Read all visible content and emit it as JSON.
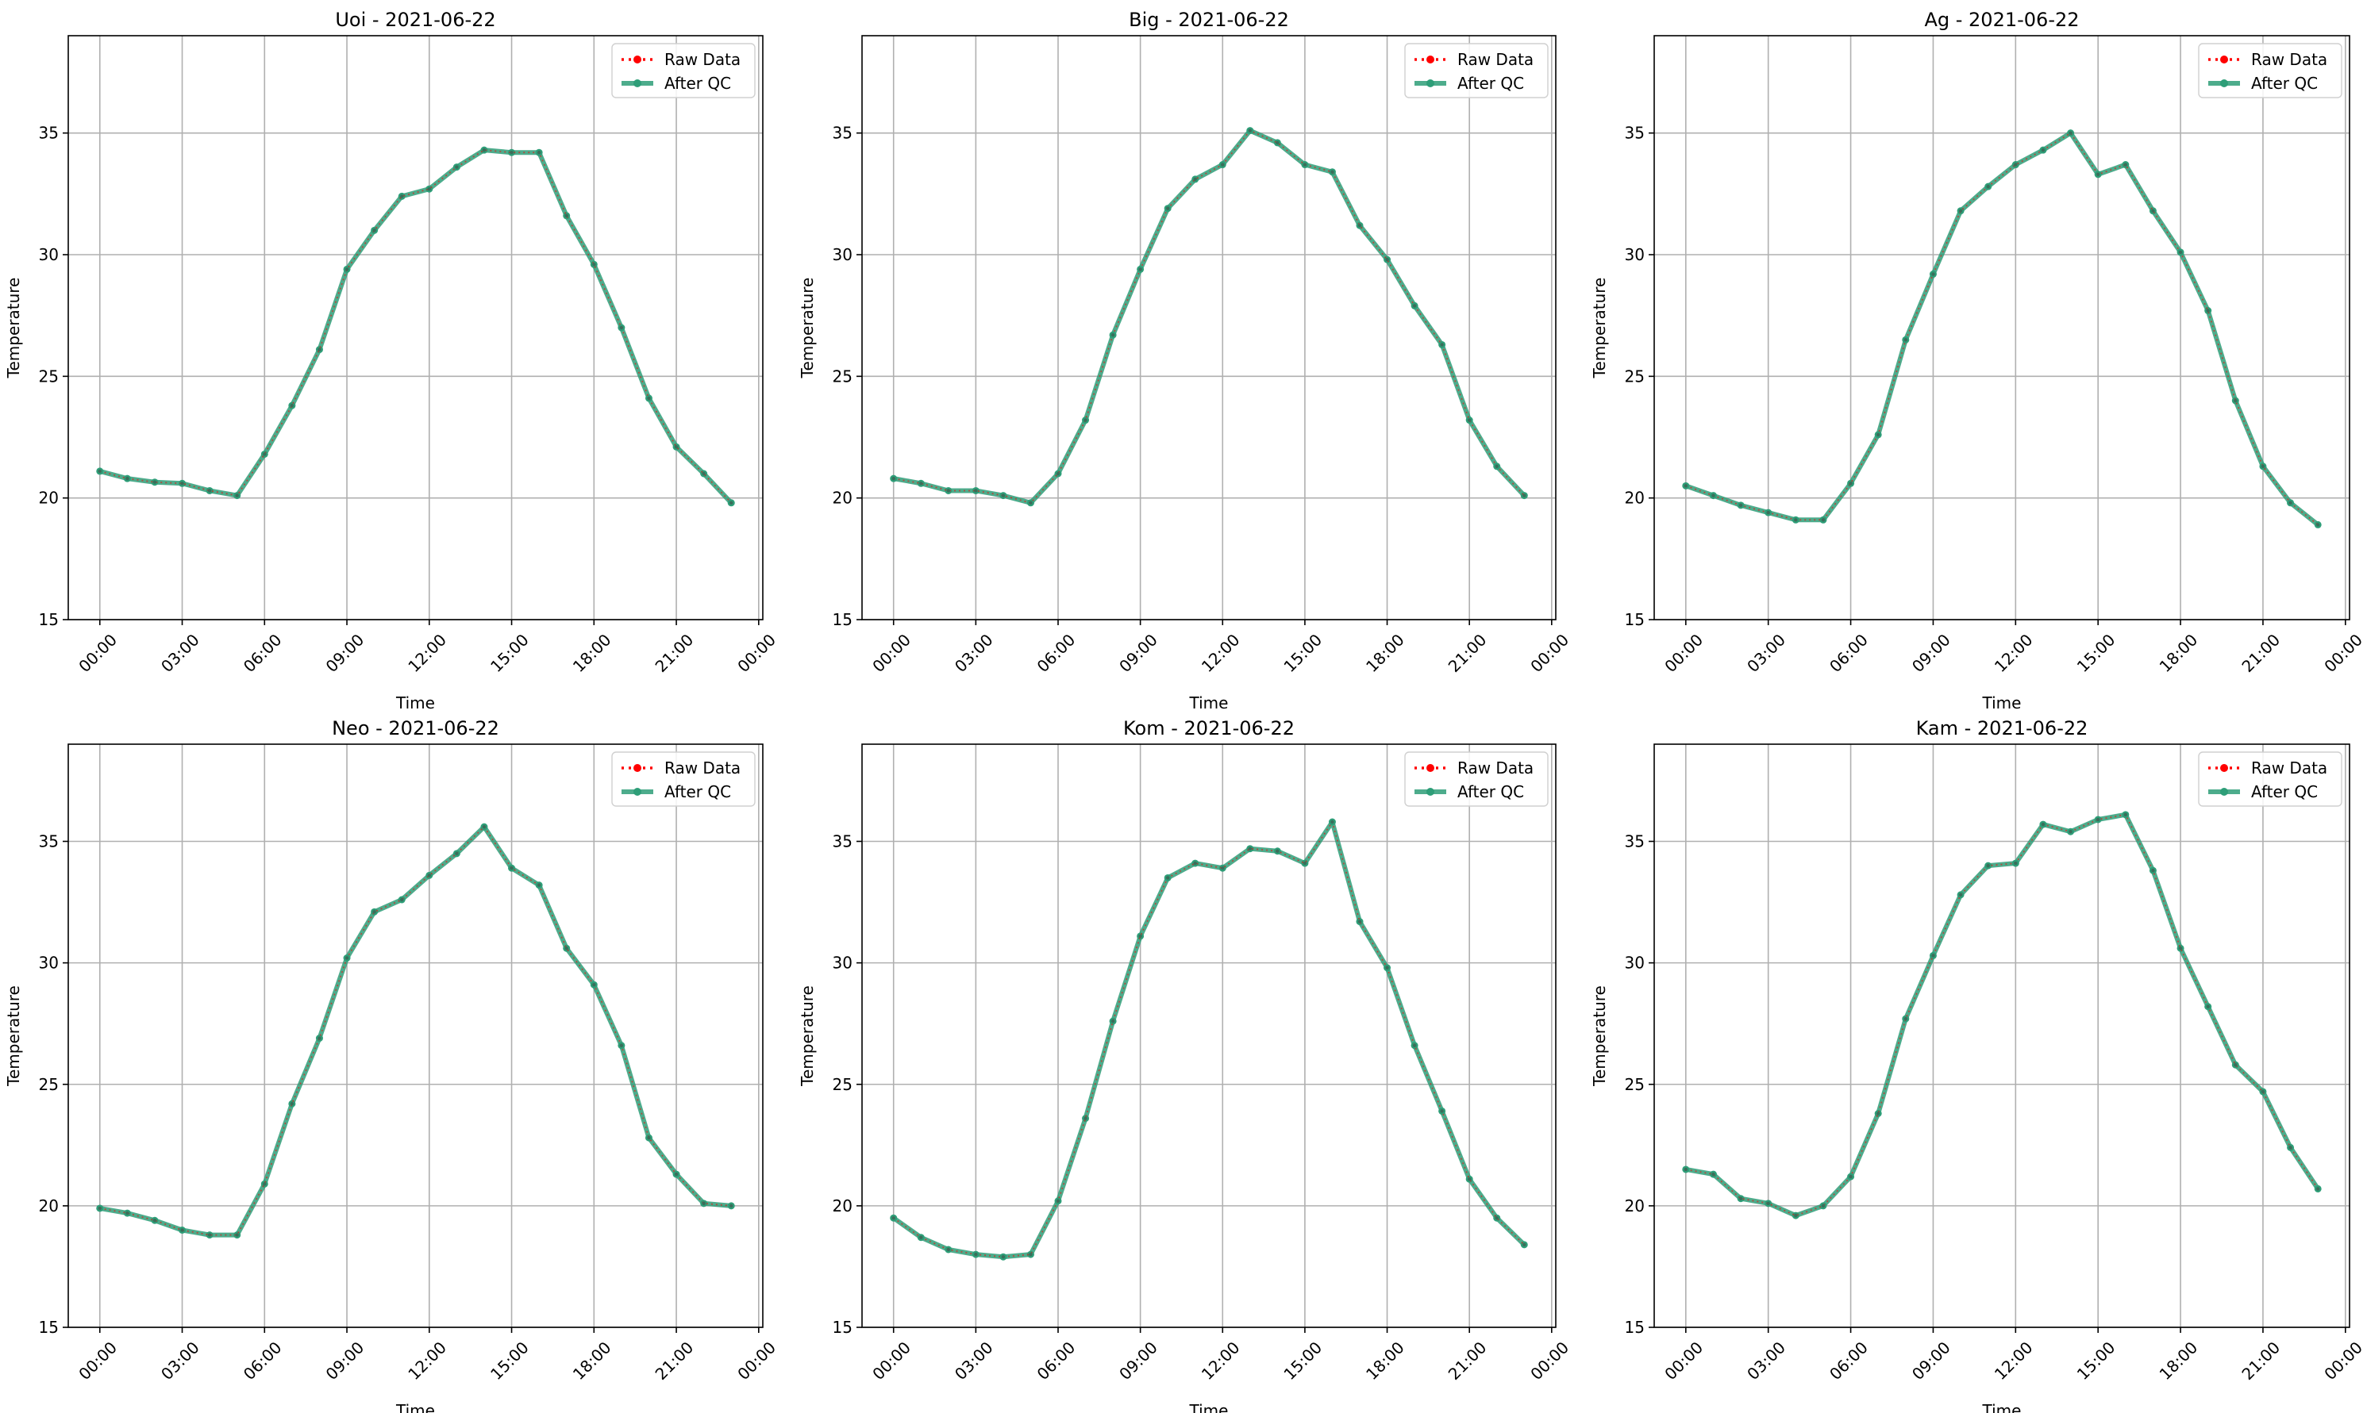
{
  "legend": {
    "raw_label": "Raw Data",
    "qc_label": "After QC",
    "placement": "upper-right"
  },
  "colors": {
    "raw": "#ff0000",
    "qc": "#2e9e78",
    "grid": "#b0b0b0",
    "axes": "#000000"
  },
  "chart_data": [
    {
      "type": "line",
      "title": "Uoi - 2021-06-22",
      "xlabel": "Time",
      "ylabel": "Temperature",
      "ylim": [
        15,
        39
      ],
      "xlim_hours": [
        -1.15,
        24.15
      ],
      "yticks": [
        15,
        20,
        25,
        30,
        35
      ],
      "xtick_labels": [
        "00:00",
        "03:00",
        "06:00",
        "09:00",
        "12:00",
        "15:00",
        "18:00",
        "21:00",
        "00:00"
      ],
      "grid": true,
      "x_hours": [
        0,
        1,
        2,
        3,
        4,
        5,
        6,
        7,
        8,
        9,
        10,
        11,
        12,
        13,
        14,
        15,
        16,
        17,
        18,
        19,
        20,
        21,
        22,
        23
      ],
      "series": [
        {
          "name": "Raw Data",
          "values": [
            21.1,
            20.8,
            20.65,
            20.6,
            20.3,
            20.1,
            21.8,
            23.8,
            26.1,
            29.4,
            31.0,
            32.4,
            32.7,
            33.6,
            34.3,
            34.2,
            34.2,
            31.6,
            29.6,
            27.0,
            24.1,
            22.1,
            21.0,
            19.8
          ]
        },
        {
          "name": "After QC",
          "values": [
            21.1,
            20.8,
            20.65,
            20.6,
            20.3,
            20.1,
            21.8,
            23.8,
            26.1,
            29.4,
            31.0,
            32.4,
            32.7,
            33.6,
            34.3,
            34.2,
            34.2,
            31.6,
            29.6,
            27.0,
            24.1,
            22.1,
            21.0,
            19.8
          ]
        }
      ]
    },
    {
      "type": "line",
      "title": "Big - 2021-06-22",
      "xlabel": "Time",
      "ylabel": "Temperature",
      "ylim": [
        15,
        39
      ],
      "xlim_hours": [
        -1.15,
        24.15
      ],
      "yticks": [
        15,
        20,
        25,
        30,
        35
      ],
      "xtick_labels": [
        "00:00",
        "03:00",
        "06:00",
        "09:00",
        "12:00",
        "15:00",
        "18:00",
        "21:00",
        "00:00"
      ],
      "grid": true,
      "x_hours": [
        0,
        1,
        2,
        3,
        4,
        5,
        6,
        7,
        8,
        9,
        10,
        11,
        12,
        13,
        14,
        15,
        16,
        17,
        18,
        19,
        20,
        21,
        22,
        23
      ],
      "series": [
        {
          "name": "Raw Data",
          "values": [
            20.8,
            20.6,
            20.3,
            20.3,
            20.1,
            19.8,
            21.0,
            23.2,
            26.7,
            29.4,
            31.9,
            33.1,
            33.7,
            35.1,
            34.6,
            33.7,
            33.4,
            31.2,
            29.8,
            27.9,
            26.3,
            23.2,
            21.3,
            20.1
          ]
        },
        {
          "name": "After QC",
          "values": [
            20.8,
            20.6,
            20.3,
            20.3,
            20.1,
            19.8,
            21.0,
            23.2,
            26.7,
            29.4,
            31.9,
            33.1,
            33.7,
            35.1,
            34.6,
            33.7,
            33.4,
            31.2,
            29.8,
            27.9,
            26.3,
            23.2,
            21.3,
            20.1
          ]
        }
      ]
    },
    {
      "type": "line",
      "title": "Ag - 2021-06-22",
      "xlabel": "Time",
      "ylabel": "Temperature",
      "ylim": [
        15,
        39
      ],
      "xlim_hours": [
        -1.15,
        24.15
      ],
      "yticks": [
        15,
        20,
        25,
        30,
        35
      ],
      "xtick_labels": [
        "00:00",
        "03:00",
        "06:00",
        "09:00",
        "12:00",
        "15:00",
        "18:00",
        "21:00",
        "00:00"
      ],
      "grid": true,
      "x_hours": [
        0,
        1,
        2,
        3,
        4,
        5,
        6,
        7,
        8,
        9,
        10,
        11,
        12,
        13,
        14,
        15,
        16,
        17,
        18,
        19,
        20,
        21,
        22,
        23
      ],
      "series": [
        {
          "name": "Raw Data",
          "values": [
            20.5,
            20.1,
            19.7,
            19.4,
            19.1,
            19.1,
            20.6,
            22.6,
            26.5,
            29.2,
            31.8,
            32.8,
            33.7,
            34.3,
            35.0,
            33.3,
            33.7,
            31.8,
            30.1,
            27.7,
            24.0,
            21.3,
            19.8,
            18.9
          ]
        },
        {
          "name": "After QC",
          "values": [
            20.5,
            20.1,
            19.7,
            19.4,
            19.1,
            19.1,
            20.6,
            22.6,
            26.5,
            29.2,
            31.8,
            32.8,
            33.7,
            34.3,
            35.0,
            33.3,
            33.7,
            31.8,
            30.1,
            27.7,
            24.0,
            21.3,
            19.8,
            18.9
          ]
        }
      ]
    },
    {
      "type": "line",
      "title": "Neo - 2021-06-22",
      "xlabel": "Time",
      "ylabel": "Temperature",
      "ylim": [
        15,
        39
      ],
      "xlim_hours": [
        -1.15,
        24.15
      ],
      "yticks": [
        15,
        20,
        25,
        30,
        35
      ],
      "xtick_labels": [
        "00:00",
        "03:00",
        "06:00",
        "09:00",
        "12:00",
        "15:00",
        "18:00",
        "21:00",
        "00:00"
      ],
      "grid": true,
      "x_hours": [
        0,
        1,
        2,
        3,
        4,
        5,
        6,
        7,
        8,
        9,
        10,
        11,
        12,
        13,
        14,
        15,
        16,
        17,
        18,
        19,
        20,
        21,
        22,
        23
      ],
      "series": [
        {
          "name": "Raw Data",
          "values": [
            19.9,
            19.7,
            19.4,
            19.0,
            18.8,
            18.8,
            20.9,
            24.2,
            26.9,
            30.2,
            32.1,
            32.6,
            33.6,
            34.5,
            35.6,
            33.9,
            33.2,
            30.6,
            29.1,
            26.6,
            22.8,
            21.3,
            20.1,
            20.0
          ]
        },
        {
          "name": "After QC",
          "values": [
            19.9,
            19.7,
            19.4,
            19.0,
            18.8,
            18.8,
            20.9,
            24.2,
            26.9,
            30.2,
            32.1,
            32.6,
            33.6,
            34.5,
            35.6,
            33.9,
            33.2,
            30.6,
            29.1,
            26.6,
            22.8,
            21.3,
            20.1,
            20.0
          ]
        }
      ]
    },
    {
      "type": "line",
      "title": "Kom - 2021-06-22",
      "xlabel": "Time",
      "ylabel": "Temperature",
      "ylim": [
        15,
        39
      ],
      "xlim_hours": [
        -1.15,
        24.15
      ],
      "yticks": [
        15,
        20,
        25,
        30,
        35
      ],
      "xtick_labels": [
        "00:00",
        "03:00",
        "06:00",
        "09:00",
        "12:00",
        "15:00",
        "18:00",
        "21:00",
        "00:00"
      ],
      "grid": true,
      "x_hours": [
        0,
        1,
        2,
        3,
        4,
        5,
        6,
        7,
        8,
        9,
        10,
        11,
        12,
        13,
        14,
        15,
        16,
        17,
        18,
        19,
        20,
        21,
        22,
        23
      ],
      "series": [
        {
          "name": "Raw Data",
          "values": [
            19.5,
            18.7,
            18.2,
            18.0,
            17.9,
            18.0,
            20.2,
            23.6,
            27.6,
            31.1,
            33.5,
            34.1,
            33.9,
            34.7,
            34.6,
            34.1,
            35.8,
            31.7,
            29.8,
            26.6,
            23.9,
            21.1,
            19.5,
            18.4
          ]
        },
        {
          "name": "After QC",
          "values": [
            19.5,
            18.7,
            18.2,
            18.0,
            17.9,
            18.0,
            20.2,
            23.6,
            27.6,
            31.1,
            33.5,
            34.1,
            33.9,
            34.7,
            34.6,
            34.1,
            35.8,
            31.7,
            29.8,
            26.6,
            23.9,
            21.1,
            19.5,
            18.4
          ]
        }
      ]
    },
    {
      "type": "line",
      "title": "Kam - 2021-06-22",
      "xlabel": "Time",
      "ylabel": "Temperature",
      "ylim": [
        15,
        39
      ],
      "xlim_hours": [
        -1.15,
        24.15
      ],
      "yticks": [
        15,
        20,
        25,
        30,
        35
      ],
      "xtick_labels": [
        "00:00",
        "03:00",
        "06:00",
        "09:00",
        "12:00",
        "15:00",
        "18:00",
        "21:00",
        "00:00"
      ],
      "grid": true,
      "x_hours": [
        0,
        1,
        2,
        3,
        4,
        5,
        6,
        7,
        8,
        9,
        10,
        11,
        12,
        13,
        14,
        15,
        16,
        17,
        18,
        19,
        20,
        21,
        22,
        23
      ],
      "series": [
        {
          "name": "Raw Data",
          "values": [
            21.5,
            21.3,
            20.3,
            20.1,
            19.6,
            20.0,
            21.2,
            23.8,
            27.7,
            30.3,
            32.8,
            34.0,
            34.1,
            35.7,
            35.4,
            35.9,
            36.1,
            33.8,
            30.6,
            28.2,
            25.8,
            24.7,
            22.4,
            20.7
          ]
        },
        {
          "name": "After QC",
          "values": [
            21.5,
            21.3,
            20.3,
            20.1,
            19.6,
            20.0,
            21.2,
            23.8,
            27.7,
            30.3,
            32.8,
            34.0,
            34.1,
            35.7,
            35.4,
            35.9,
            36.1,
            33.8,
            30.6,
            28.2,
            25.8,
            24.7,
            22.4,
            20.7
          ]
        }
      ]
    }
  ]
}
